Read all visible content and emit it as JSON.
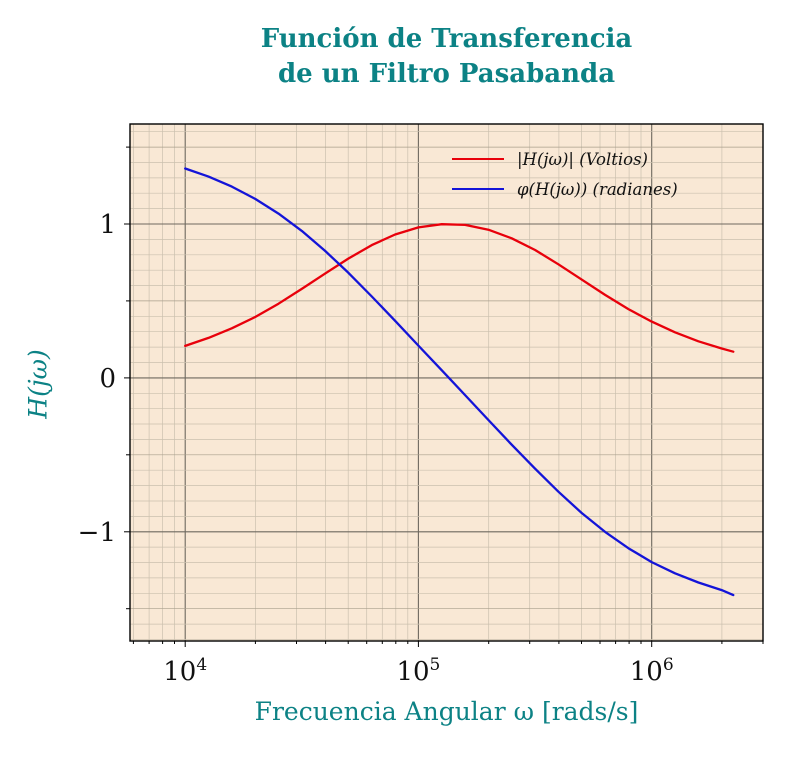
{
  "figure": {
    "title_lines": [
      "Función de Transferencia",
      "de un Filtro Pasabanda"
    ]
  },
  "chart_data": {
    "type": "line",
    "title": "Función de Transferencia de un Filtro Pasabanda",
    "xlabel": "Frecuencia Angular ω [rads/s]",
    "ylabel": "H(jω)",
    "x_scale": "log",
    "y_scale": "linear",
    "xlim": [
      5800,
      3000000
    ],
    "ylim": [
      -1.71,
      1.65
    ],
    "x_ticks": [
      10000,
      100000,
      1000000
    ],
    "x_tick_labels": [
      "10^4",
      "10^5",
      "10^6"
    ],
    "y_ticks": [
      -1,
      0,
      1
    ],
    "y_tick_labels": [
      "-1",
      "0",
      "1"
    ],
    "grid": "major+minor, both axes",
    "legend_position": "top-right-inside",
    "colors": {
      "accent": "#0c8285",
      "plot_bg": "#f9e8d5",
      "grid_minor": "#cbc0ae",
      "grid_mid": "#a99e8c",
      "grid_major": "#6e685f",
      "frame": "#000000",
      "magnitude": "#e8000b",
      "phase": "#1414d8"
    },
    "x": [
      10000,
      12589,
      15849,
      19953,
      25119,
      31623,
      39811,
      50119,
      63096,
      79433,
      100000,
      125893,
      158489,
      199526,
      251189,
      316228,
      398107,
      501187,
      630957,
      794328,
      1000000,
      1258925,
      1584893,
      1995262,
      2238721
    ],
    "series": [
      {
        "name": "|H(jω)| (Voltios)",
        "color": "#e8000b",
        "values": [
          0.208,
          0.26,
          0.322,
          0.396,
          0.482,
          0.578,
          0.678,
          0.776,
          0.863,
          0.932,
          0.978,
          0.999,
          0.994,
          0.963,
          0.907,
          0.831,
          0.738,
          0.639,
          0.539,
          0.447,
          0.366,
          0.296,
          0.238,
          0.191,
          0.17
        ]
      },
      {
        "name": "φ(H(jω)) (radianes)",
        "color": "#1414d8",
        "values": [
          1.361,
          1.308,
          1.243,
          1.163,
          1.068,
          0.955,
          0.825,
          0.682,
          0.529,
          0.371,
          0.21,
          0.049,
          -0.112,
          -0.274,
          -0.434,
          -0.59,
          -0.74,
          -0.878,
          -1.001,
          -1.107,
          -1.197,
          -1.27,
          -1.33,
          -1.379,
          -1.412
        ]
      }
    ]
  }
}
